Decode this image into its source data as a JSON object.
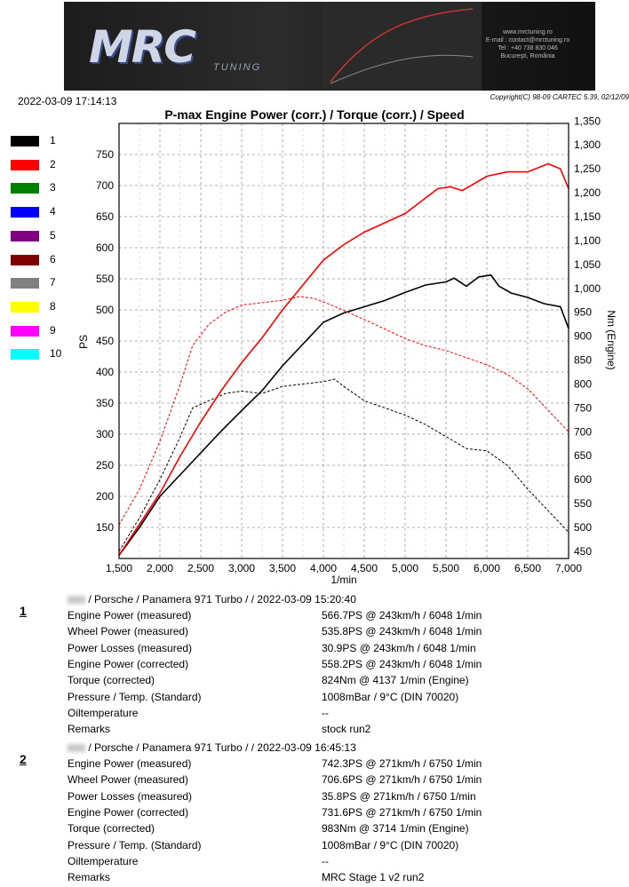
{
  "banner": {
    "logo": "MRC",
    "logo_sub": "TUNING",
    "contact": [
      "www.mrctuning.ro",
      "E-mail : contact@mrctuning.ro",
      "Tel : +40 738 830 046",
      "Bucureşti, România"
    ]
  },
  "header": {
    "datetime": "2022-03-09 17:14:13",
    "copyright": "Copyright(C) 98-09 CARTEC 5.39, 02/12/09",
    "title": "P-max Engine Power (corr.) / Torque (corr.) / Speed"
  },
  "legend": [
    {
      "label": "1",
      "color": "#000000"
    },
    {
      "label": "2",
      "color": "#ff0000"
    },
    {
      "label": "3",
      "color": "#008000"
    },
    {
      "label": "4",
      "color": "#0000ff"
    },
    {
      "label": "5",
      "color": "#800080"
    },
    {
      "label": "6",
      "color": "#800000"
    },
    {
      "label": "7",
      "color": "#808080"
    },
    {
      "label": "8",
      "color": "#ffff00"
    },
    {
      "label": "9",
      "color": "#ff00ff"
    },
    {
      "label": "10",
      "color": "#00ffff"
    }
  ],
  "chart_data": {
    "type": "line",
    "title": "P-max Engine Power (corr.) / Torque (corr.) / Speed",
    "xlabel": "1/min",
    "ylabel": "PS",
    "y2label": "Nm (Engine)",
    "xlim": [
      1500,
      7000
    ],
    "ylim": [
      100,
      800
    ],
    "y2lim": [
      435,
      1345
    ],
    "xticks": [
      "1,500",
      "2,000",
      "2,500",
      "3,000",
      "3,500",
      "4,000",
      "4,500",
      "5,000",
      "5,500",
      "6,000",
      "6,500",
      "7,000"
    ],
    "xtick_values": [
      1500,
      2000,
      2500,
      3000,
      3500,
      4000,
      4500,
      5000,
      5500,
      6000,
      6500,
      7000
    ],
    "yticks": [
      "150",
      "200",
      "250",
      "300",
      "350",
      "400",
      "450",
      "500",
      "550",
      "600",
      "650",
      "700",
      "750"
    ],
    "ytick_values": [
      150,
      200,
      250,
      300,
      350,
      400,
      450,
      500,
      550,
      600,
      650,
      700,
      750
    ],
    "y2ticks": [
      "450",
      "500",
      "550",
      "600",
      "650",
      "700",
      "750",
      "800",
      "850",
      "900",
      "950",
      "1,000",
      "1,050",
      "1,100",
      "1,150",
      "1,200",
      "1,250",
      "1,300",
      "1,350"
    ],
    "y2tick_values": [
      450,
      500,
      550,
      600,
      650,
      700,
      750,
      800,
      850,
      900,
      950,
      1000,
      1050,
      1100,
      1150,
      1200,
      1250,
      1300,
      1350
    ],
    "grid": true,
    "series": [
      {
        "name": "1",
        "color": "#000000",
        "style": "solid",
        "axis": "left",
        "x": [
          1500,
          1750,
          2000,
          2250,
          2500,
          2750,
          3000,
          3250,
          3500,
          3750,
          4000,
          4250,
          4500,
          4750,
          5000,
          5250,
          5500,
          5600,
          5750,
          5900,
          6050,
          6150,
          6300,
          6500,
          6700,
          6900,
          7000
        ],
        "y": [
          105,
          150,
          200,
          235,
          270,
          305,
          338,
          370,
          410,
          445,
          480,
          495,
          505,
          515,
          528,
          540,
          545,
          551,
          538,
          553,
          556,
          538,
          527,
          520,
          510,
          505,
          470
        ]
      },
      {
        "name": "1",
        "color": "#000000",
        "style": "dashed",
        "axis": "right",
        "x": [
          1500,
          1750,
          2000,
          2250,
          2400,
          2600,
          2800,
          3000,
          3250,
          3500,
          3750,
          4000,
          4137,
          4250,
          4500,
          4750,
          5000,
          5250,
          5500,
          5750,
          6000,
          6250,
          6500,
          6750,
          7000
        ],
        "y": [
          450,
          520,
          600,
          690,
          750,
          765,
          780,
          785,
          780,
          795,
          800,
          805,
          810,
          795,
          765,
          750,
          735,
          715,
          690,
          665,
          660,
          630,
          580,
          535,
          490
        ]
      },
      {
        "name": "2",
        "color": "#ff0000",
        "style": "solid",
        "axis": "left",
        "x": [
          1500,
          1750,
          2000,
          2250,
          2500,
          2750,
          3000,
          3250,
          3500,
          3750,
          4000,
          4250,
          4500,
          4750,
          5000,
          5250,
          5400,
          5550,
          5700,
          6000,
          6250,
          6500,
          6750,
          6900,
          7000
        ],
        "y": [
          105,
          155,
          205,
          265,
          320,
          370,
          415,
          455,
          500,
          540,
          580,
          605,
          625,
          640,
          655,
          680,
          695,
          698,
          692,
          715,
          722,
          722,
          735,
          727,
          695
        ]
      },
      {
        "name": "2",
        "color": "#ff0000",
        "style": "dashed",
        "axis": "right",
        "x": [
          1500,
          1750,
          2000,
          2250,
          2400,
          2600,
          2800,
          3000,
          3250,
          3500,
          3714,
          3900,
          4100,
          4300,
          4500,
          4750,
          5000,
          5250,
          5500,
          5750,
          6000,
          6250,
          6500,
          6750,
          7000
        ],
        "y": [
          505,
          580,
          680,
          800,
          880,
          925,
          950,
          965,
          970,
          975,
          983,
          978,
          965,
          950,
          935,
          915,
          895,
          880,
          870,
          855,
          840,
          820,
          790,
          745,
          700
        ]
      }
    ]
  },
  "runs": [
    {
      "number": "1",
      "header": "/ Porsche / Panamera 971 Turbo /  / 2022-03-09 15:20:40",
      "rows": [
        {
          "label": "Engine Power (measured)",
          "value": "566.7PS @ 243km/h / 6048 1/min"
        },
        {
          "label": "Wheel Power (measured)",
          "value": "535.8PS @ 243km/h / 6048 1/min"
        },
        {
          "label": "Power Losses (measured)",
          "value": "30.9PS @ 243km/h / 6048 1/min"
        },
        {
          "label": "Engine Power (corrected)",
          "value": "558.2PS @ 243km/h / 6048 1/min"
        },
        {
          "label": "Torque (corrected)",
          "value": "824Nm @ 4137 1/min (Engine)"
        },
        {
          "label": "Pressure / Temp. (Standard)",
          "value": "1008mBar / 9°C   (DIN 70020)"
        },
        {
          "label": "Oiltemperature",
          "value": "--"
        },
        {
          "label": "Remarks",
          "value": "stock run2"
        }
      ]
    },
    {
      "number": "2",
      "header": "/ Porsche / Panamera 971 Turbo /  / 2022-03-09 16:45:13",
      "rows": [
        {
          "label": "Engine Power (measured)",
          "value": "742.3PS @ 271km/h / 6750 1/min"
        },
        {
          "label": "Wheel Power (measured)",
          "value": "706.6PS @ 271km/h / 6750 1/min"
        },
        {
          "label": "Power Losses (measured)",
          "value": "35.8PS @ 271km/h / 6750 1/min"
        },
        {
          "label": "Engine Power (corrected)",
          "value": "731.6PS @ 271km/h / 6750 1/min"
        },
        {
          "label": "Torque (corrected)",
          "value": "983Nm @ 3714 1/min (Engine)"
        },
        {
          "label": "Pressure / Temp. (Standard)",
          "value": "1008mBar / 9°C   (DIN 70020)"
        },
        {
          "label": "Oiltemperature",
          "value": "--"
        },
        {
          "label": "Remarks",
          "value": "MRC Stage 1 v2 run2"
        }
      ]
    }
  ]
}
